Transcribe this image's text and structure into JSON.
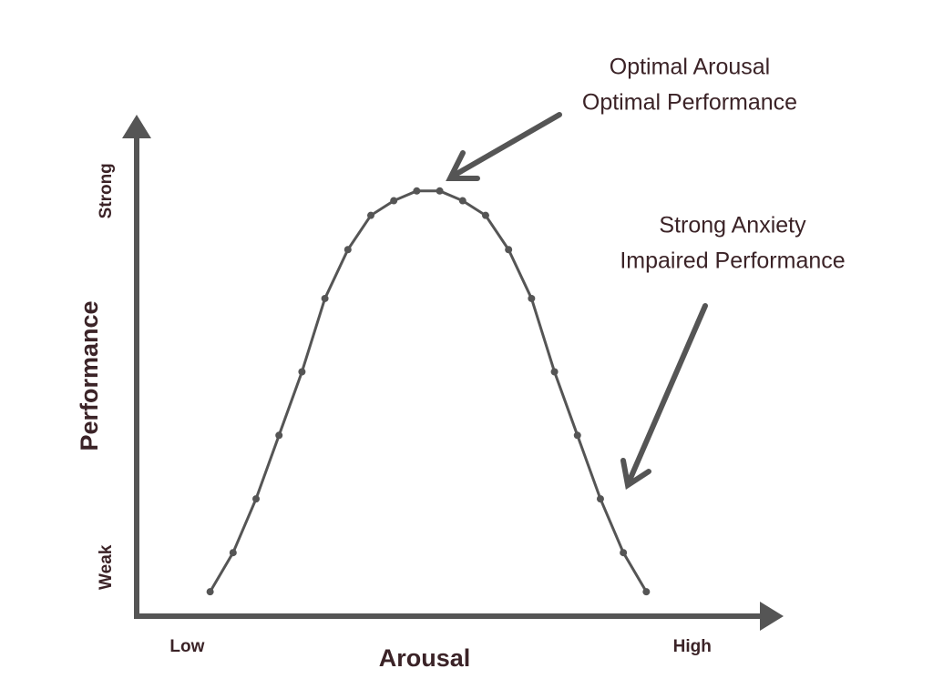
{
  "chart_data": {
    "type": "line",
    "x_label": "Arousal",
    "y_label": "Performance",
    "x": [
      1,
      2,
      3,
      4,
      5,
      6,
      7,
      8,
      9,
      10,
      11,
      12,
      13,
      14,
      15,
      16,
      17,
      18,
      19,
      20
    ],
    "series": [
      {
        "color": "#555555",
        "values": [
          5,
          13,
          24,
          37,
          50,
          65,
          75,
          82,
          85,
          87,
          87,
          85,
          82,
          75,
          65,
          50,
          37,
          24,
          13,
          5
        ]
      }
    ],
    "xlim": [
      -2.2,
      25.9
    ],
    "ylim": [
      0,
      100
    ],
    "xticks": [
      {
        "value": 0,
        "label": "Low"
      },
      {
        "value": 22,
        "label": "High"
      }
    ],
    "yticks": [
      {
        "value": 10,
        "label": "Weak"
      },
      {
        "value": 87,
        "label": "Strong"
      }
    ],
    "annotations": [
      {
        "lines": [
          "Optimal Arousal",
          "Optimal Performance"
        ]
      },
      {
        "lines": [
          "Strong Anxiety",
          "Impaired Performance"
        ]
      }
    ]
  }
}
